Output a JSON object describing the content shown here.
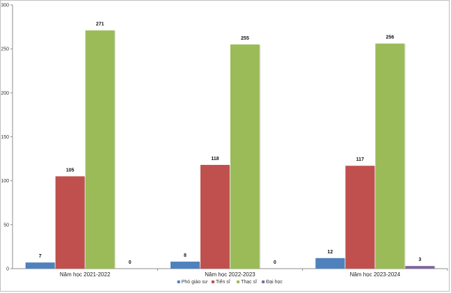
{
  "chart_data": {
    "type": "bar",
    "categories": [
      "Năm học 2021-2022",
      "Năm học 2022-2023",
      "Năm học 2023-2024"
    ],
    "series": [
      {
        "name": "Phó giáo sư",
        "values": [
          7,
          8,
          12
        ],
        "color": "#4f81bd"
      },
      {
        "name": "Tiến sĩ",
        "values": [
          105,
          118,
          117
        ],
        "color": "#c0504d"
      },
      {
        "name": "Thạc sĩ",
        "values": [
          271,
          255,
          256
        ],
        "color": "#9bbb59"
      },
      {
        "name": "Đại học",
        "values": [
          0,
          0,
          3
        ],
        "color": "#8064a2"
      }
    ],
    "ylim": [
      0,
      300
    ],
    "yticks": [
      0,
      50,
      100,
      150,
      200,
      250,
      300
    ],
    "grid": false,
    "legend_position": "bottom",
    "title": "",
    "xlabel": "",
    "ylabel": ""
  }
}
